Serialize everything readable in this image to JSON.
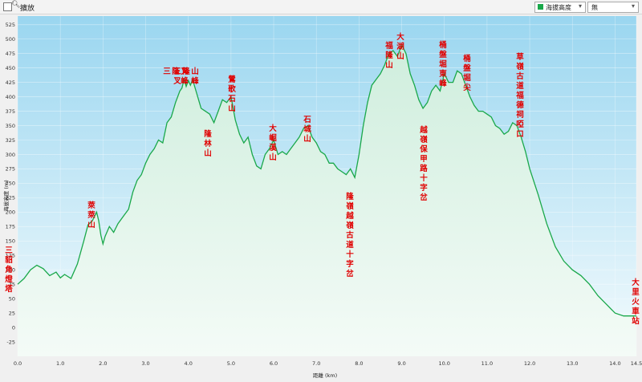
{
  "toolbar": {
    "zoom_label": "擴放",
    "series_select": "海拔高度",
    "second_select": "無"
  },
  "colors": {
    "line": "#1aa84a",
    "fill_top": "#cfeedd",
    "fill_bottom": "#f4fbf7",
    "bg_top": "#9ad6f0",
    "bg_bottom": "#f4fbfd",
    "labels": "#e00000"
  },
  "chart_data": {
    "type": "area",
    "xlabel": "距離 (km)",
    "ylabel": "海拔高度 (m)",
    "xlim": [
      0,
      14.5
    ],
    "ylim": [
      -50,
      540
    ],
    "x_ticks": [
      "0.0",
      "1.0",
      "2.0",
      "3.0",
      "4.0",
      "5.0",
      "6.0",
      "7.0",
      "8.0",
      "9.0",
      "10.0",
      "11.0",
      "12.0",
      "13.0",
      "14.0",
      "14.5"
    ],
    "y_ticks": [
      "-25",
      "0",
      "25",
      "50",
      "75",
      "100",
      "125",
      "150",
      "175",
      "200",
      "225",
      "250",
      "275",
      "300",
      "325",
      "350",
      "375",
      "400",
      "425",
      "450",
      "475",
      "500",
      "525"
    ],
    "grid": true,
    "series": [
      {
        "x": [
          0,
          0.15,
          0.3,
          0.45,
          0.6,
          0.75,
          0.9,
          1.0,
          1.1,
          1.25,
          1.4,
          1.55,
          1.65,
          1.75,
          1.85,
          1.9,
          1.95,
          2.0,
          2.05,
          2.15,
          2.25,
          2.35,
          2.5,
          2.6,
          2.7,
          2.8,
          2.9,
          3.0,
          3.1,
          3.2,
          3.3,
          3.4,
          3.5,
          3.6,
          3.7,
          3.8,
          3.85,
          3.9,
          3.95,
          4.0,
          4.05,
          4.1,
          4.2,
          4.3,
          4.4,
          4.5,
          4.6,
          4.7,
          4.8,
          4.9,
          5.0,
          5.1,
          5.2,
          5.3,
          5.4,
          5.5,
          5.6,
          5.7,
          5.8,
          5.9,
          6.0,
          6.1,
          6.2,
          6.3,
          6.4,
          6.5,
          6.6,
          6.7,
          6.8,
          6.9,
          7.0,
          7.1,
          7.2,
          7.3,
          7.4,
          7.5,
          7.6,
          7.7,
          7.8,
          7.9,
          8.0,
          8.1,
          8.2,
          8.3,
          8.4,
          8.5,
          8.6,
          8.7,
          8.8,
          8.9,
          9.0,
          9.1,
          9.2,
          9.3,
          9.4,
          9.5,
          9.6,
          9.7,
          9.8,
          9.9,
          10.0,
          10.1,
          10.2,
          10.3,
          10.4,
          10.5,
          10.6,
          10.7,
          10.8,
          10.9,
          11.0,
          11.1,
          11.2,
          11.3,
          11.4,
          11.5,
          11.6,
          11.7,
          11.8,
          11.9,
          12.0,
          12.2,
          12.4,
          12.6,
          12.8,
          13.0,
          13.2,
          13.4,
          13.6,
          13.8,
          14.0,
          14.2,
          14.4,
          14.5
        ],
        "values": [
          75,
          85,
          100,
          108,
          102,
          90,
          96,
          86,
          92,
          85,
          110,
          150,
          178,
          185,
          200,
          185,
          160,
          145,
          158,
          175,
          165,
          180,
          195,
          205,
          235,
          255,
          265,
          285,
          300,
          310,
          325,
          320,
          355,
          365,
          390,
          410,
          415,
          430,
          418,
          428,
          420,
          430,
          405,
          380,
          375,
          370,
          355,
          375,
          395,
          390,
          400,
          360,
          335,
          320,
          330,
          300,
          280,
          275,
          300,
          310,
          325,
          300,
          305,
          300,
          310,
          320,
          330,
          345,
          350,
          330,
          320,
          305,
          300,
          285,
          285,
          275,
          270,
          265,
          275,
          260,
          300,
          350,
          390,
          420,
          430,
          440,
          455,
          475,
          480,
          470,
          490,
          475,
          440,
          420,
          395,
          380,
          390,
          410,
          420,
          410,
          440,
          425,
          425,
          445,
          440,
          420,
          400,
          385,
          375,
          375,
          370,
          365,
          350,
          345,
          335,
          340,
          355,
          350,
          330,
          305,
          275,
          230,
          180,
          140,
          115,
          100,
          90,
          75,
          55,
          40,
          25,
          20,
          20,
          20
        ]
      }
    ],
    "annotations": [
      {
        "text": "三貂角燈塔",
        "x": 0.0
      },
      {
        "text": "萊萊山",
        "x": 1.85
      },
      {
        "text": "三隆叉峰",
        "x": 3.9
      },
      {
        "text": "三叉隆山峰",
        "x": 4.15
      },
      {
        "text": "隆林山",
        "x": 4.5
      },
      {
        "text": "鶯歌石山",
        "x": 5.05
      },
      {
        "text": "大崛溪山",
        "x": 5.9
      },
      {
        "text": "石城山",
        "x": 6.8
      },
      {
        "text": "隆嶺越嶺古道十字岔",
        "x": 7.9
      },
      {
        "text": "福隆山",
        "x": 8.8
      },
      {
        "text": "大湖山",
        "x": 9.0
      },
      {
        "text": "越嶺保甲路十字岔",
        "x": 9.6
      },
      {
        "text": "桶盤堀東峰",
        "x": 10.0
      },
      {
        "text": "桶盤堀尖",
        "x": 10.55
      },
      {
        "text": "草嶺古道福德祠啞口",
        "x": 11.6
      },
      {
        "text": "大里火車站",
        "x": 14.5
      }
    ]
  }
}
